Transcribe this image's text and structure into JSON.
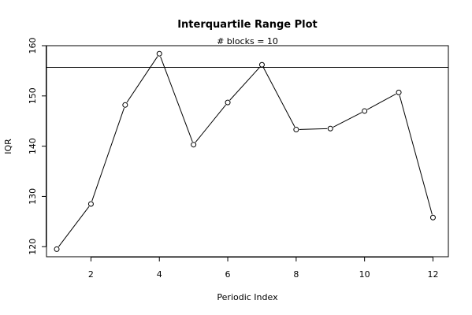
{
  "chart_data": {
    "type": "line",
    "title": "Interquartile Range Plot",
    "subtitle": "# blocks =  10",
    "xlabel": "Periodic Index",
    "ylabel": "IQR",
    "xlim": [
      0.7,
      12.45
    ],
    "ylim": [
      118.0,
      160.0
    ],
    "xticks": [
      2,
      4,
      6,
      8,
      10,
      12
    ],
    "yticks": [
      120,
      130,
      140,
      150,
      160
    ],
    "reference_line": 155.7,
    "grid": false,
    "x": [
      1,
      2,
      3,
      4,
      5,
      6,
      7,
      8,
      9,
      10,
      11,
      12
    ],
    "series": [
      {
        "values": [
          119.5,
          128.5,
          148.2,
          158.4,
          140.3,
          148.7,
          156.2,
          143.3,
          143.5,
          147.0,
          150.7,
          125.8
        ]
      }
    ]
  }
}
